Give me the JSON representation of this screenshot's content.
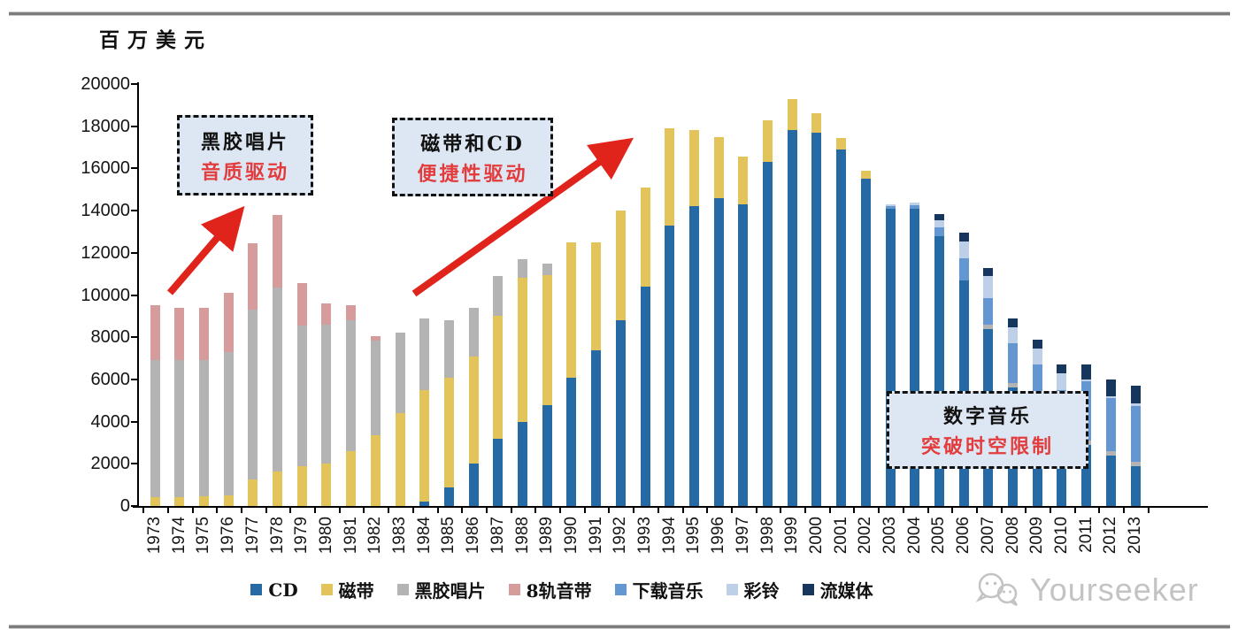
{
  "page": {
    "unit_label": "百万美元",
    "watermark_text": "Yourseeker"
  },
  "annotations": [
    {
      "line1": "黑胶唱片",
      "line2": "音质驱动"
    },
    {
      "line1": "磁带和CD",
      "line2": "便捷性驱动"
    },
    {
      "line1": "数字音乐",
      "line2": "突破时空限制"
    }
  ],
  "colors": {
    "cd": "#2569a5",
    "cassette": "#e2c45a",
    "vinyl": "#b3b3b3",
    "eight_track": "#d59c9b",
    "download": "#6496d2",
    "ringtone": "#bdd0e8",
    "streaming": "#17365d",
    "arrow_red": "#e0241b",
    "callout_bg": "#dde7f4",
    "callout_red_text": "#e23c3c",
    "watermark_gray": "#c3c3c3"
  },
  "chart_data": {
    "type": "bar",
    "stacked": true,
    "unit": "百万美元",
    "ylim": [
      0,
      20000
    ],
    "ytick_step": 2000,
    "grid": false,
    "legend_position": "bottom",
    "categories": [
      1973,
      1974,
      1975,
      1976,
      1977,
      1978,
      1979,
      1980,
      1981,
      1982,
      1983,
      1984,
      1985,
      1986,
      1987,
      1988,
      1989,
      1990,
      1991,
      1992,
      1993,
      1994,
      1995,
      1996,
      1997,
      1998,
      1999,
      2000,
      2001,
      2002,
      2003,
      2004,
      2005,
      2006,
      2007,
      2008,
      2009,
      2010,
      2011,
      2012,
      2013
    ],
    "series": [
      {
        "name": "CD",
        "key": "cd",
        "values": [
          0,
          0,
          0,
          0,
          0,
          0,
          0,
          0,
          0,
          0,
          0,
          200,
          900,
          2000,
          3200,
          4000,
          4800,
          6100,
          7400,
          8800,
          10400,
          13300,
          14200,
          14600,
          14300,
          16300,
          17800,
          17700,
          16900,
          15500,
          14100,
          14100,
          12800,
          10700,
          8400,
          5600,
          4300,
          3500,
          2900,
          2400,
          1900
        ]
      },
      {
        "name": "磁带",
        "key": "cassette",
        "values": [
          400,
          400,
          450,
          500,
          1250,
          1650,
          1900,
          2000,
          2600,
          3350,
          4400,
          5300,
          5200,
          5100,
          5800,
          6800,
          6150,
          6400,
          5100,
          5200,
          4700,
          4600,
          3600,
          2900,
          2250,
          2000,
          1500,
          900,
          550,
          400,
          0,
          0,
          0,
          0,
          0,
          0,
          0,
          0,
          0,
          0,
          0
        ]
      },
      {
        "name": "黑胶唱片",
        "key": "vinyl",
        "values": [
          6500,
          6500,
          6450,
          6800,
          8050,
          8700,
          6650,
          6600,
          6200,
          4500,
          3800,
          3400,
          2700,
          2300,
          1900,
          900,
          550,
          0,
          0,
          0,
          0,
          0,
          0,
          0,
          0,
          0,
          0,
          0,
          0,
          0,
          0,
          0,
          0,
          0,
          200,
          250,
          200,
          200,
          200,
          200,
          200
        ]
      },
      {
        "name": "8轨音带",
        "key": "eight_track",
        "values": [
          2600,
          2500,
          2500,
          2800,
          3150,
          3450,
          2000,
          1000,
          700,
          200,
          0,
          0,
          0,
          0,
          0,
          0,
          0,
          0,
          0,
          0,
          0,
          0,
          0,
          0,
          0,
          0,
          0,
          0,
          0,
          0,
          0,
          0,
          0,
          0,
          0,
          0,
          0,
          0,
          0,
          0,
          0
        ]
      },
      {
        "name": "下载音乐",
        "key": "download",
        "values": [
          0,
          0,
          0,
          0,
          0,
          0,
          0,
          0,
          0,
          0,
          0,
          0,
          0,
          0,
          0,
          0,
          0,
          0,
          0,
          0,
          0,
          0,
          0,
          0,
          0,
          0,
          0,
          0,
          0,
          0,
          100,
          150,
          400,
          1050,
          1250,
          1850,
          2200,
          1800,
          2800,
          2500,
          2650
        ]
      },
      {
        "name": "彩铃",
        "key": "ringtone",
        "values": [
          0,
          0,
          0,
          0,
          0,
          0,
          0,
          0,
          0,
          0,
          0,
          0,
          0,
          0,
          0,
          0,
          0,
          0,
          0,
          0,
          0,
          0,
          0,
          0,
          0,
          0,
          0,
          0,
          0,
          0,
          100,
          150,
          350,
          800,
          1050,
          780,
          780,
          800,
          100,
          100,
          100
        ]
      },
      {
        "name": "流媒体",
        "key": "streaming",
        "values": [
          0,
          0,
          0,
          0,
          0,
          0,
          0,
          0,
          0,
          0,
          0,
          0,
          0,
          0,
          0,
          0,
          0,
          0,
          0,
          0,
          0,
          0,
          0,
          0,
          0,
          0,
          0,
          0,
          0,
          0,
          0,
          0,
          300,
          400,
          400,
          420,
          420,
          420,
          700,
          800,
          850
        ]
      }
    ]
  }
}
